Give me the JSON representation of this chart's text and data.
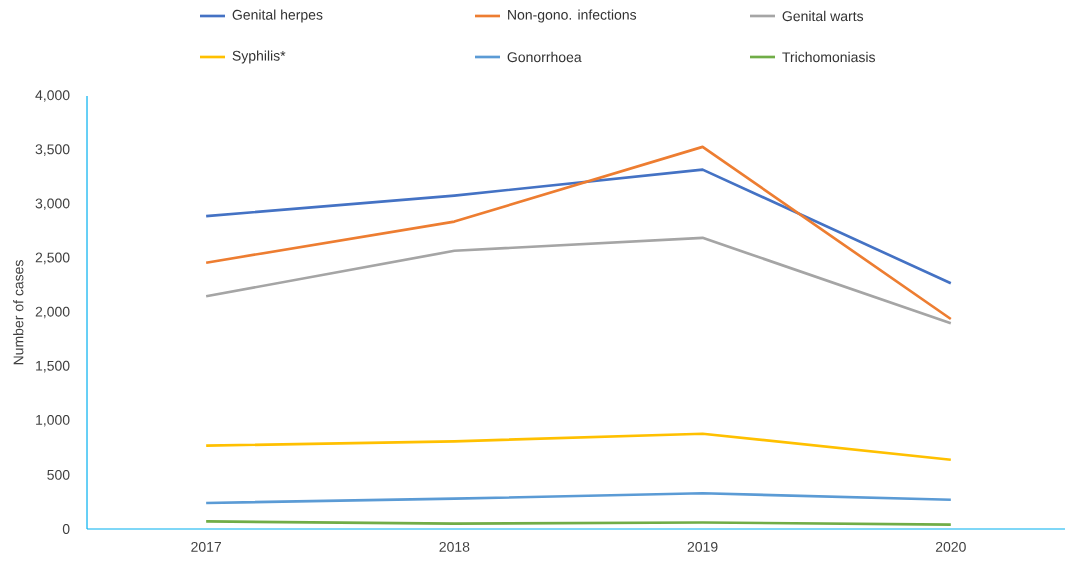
{
  "chart_data": {
    "type": "line",
    "ylabel": "Number of cases",
    "categories": [
      "2017",
      "2018",
      "2019",
      "2020"
    ],
    "series": [
      {
        "name": "Genital herpes",
        "color": "#4472c4",
        "values": [
          2890,
          3080,
          3320,
          2270
        ]
      },
      {
        "name": "Non-gono. infections",
        "color": "#ed7d31",
        "values": [
          2460,
          2840,
          3530,
          1940
        ]
      },
      {
        "name": "Genital warts",
        "color": "#a5a5a5",
        "values": [
          2150,
          2570,
          2690,
          1900
        ]
      },
      {
        "name": "Syphilis*",
        "color": "#ffc000",
        "values": [
          770,
          810,
          880,
          640
        ]
      },
      {
        "name": "Gonorrhoea",
        "color": "#5b9bd5",
        "values": [
          240,
          280,
          330,
          270
        ]
      },
      {
        "name": "Trichomoniasis",
        "color": "#70ad47",
        "values": [
          70,
          50,
          60,
          40
        ]
      }
    ],
    "ylim": [
      0,
      4000
    ],
    "yticks": [
      0,
      500,
      {
        "value": 1000,
        "label": "1,000"
      },
      {
        "value": 1500,
        "label": "1,500"
      },
      {
        "value": 2000,
        "label": "2,000"
      },
      {
        "value": 2500,
        "label": "2,500"
      },
      {
        "value": 3000,
        "label": "3,000"
      },
      {
        "value": 3500,
        "label": "3,500"
      },
      {
        "value": 4000,
        "label": "4,000"
      }
    ],
    "grid": false,
    "legend": "top",
    "marker": "none",
    "line_style": "solid"
  }
}
